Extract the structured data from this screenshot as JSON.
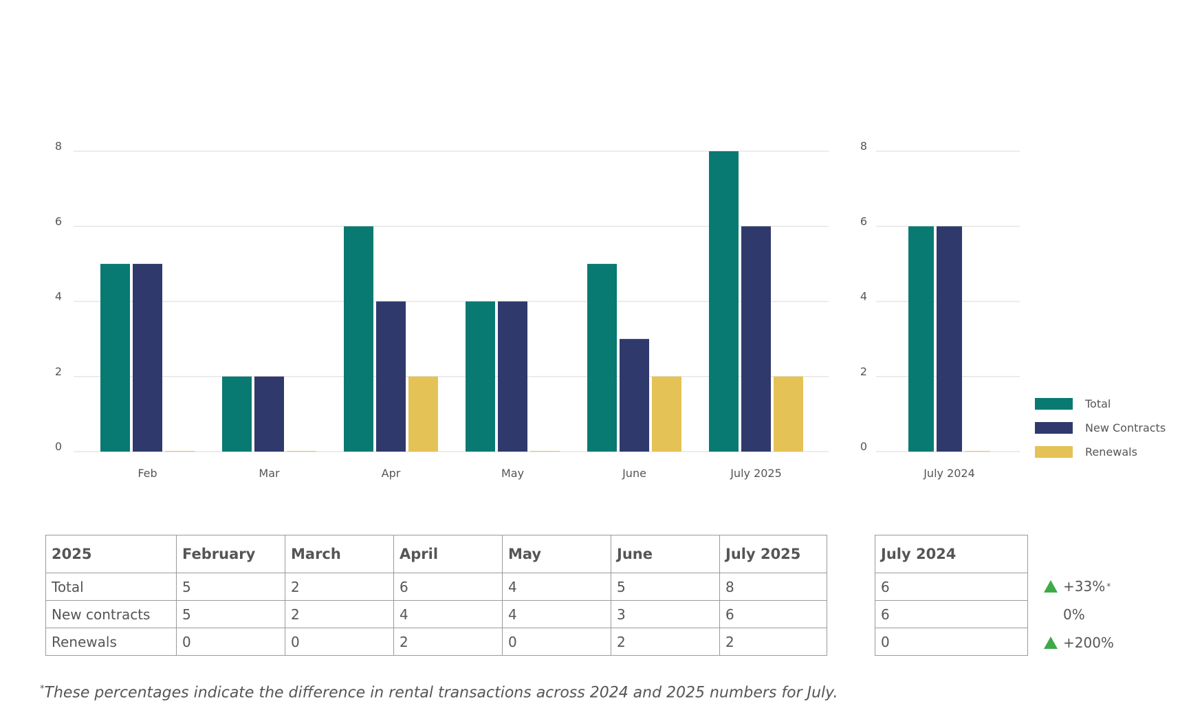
{
  "colors": {
    "total": "#087a72",
    "new_contracts": "#2f396b",
    "renewals": "#e5c255",
    "grid": "#e6e6e6",
    "up_arrow": "#3daa48"
  },
  "chart_data": [
    {
      "type": "bar",
      "categories": [
        "Feb",
        "Mar",
        "Apr",
        "May",
        "June",
        "July 2025"
      ],
      "series": [
        {
          "name": "Total",
          "values": [
            5,
            2,
            6,
            4,
            5,
            8
          ]
        },
        {
          "name": "New Contracts",
          "values": [
            5,
            2,
            4,
            4,
            3,
            6
          ]
        },
        {
          "name": "Renewals",
          "values": [
            0,
            0,
            2,
            0,
            2,
            2
          ]
        }
      ],
      "yticks": [
        "0",
        "2",
        "4",
        "6",
        "8"
      ],
      "ylim": [
        0,
        8
      ],
      "grid": true
    },
    {
      "type": "bar",
      "categories": [
        "July 2024"
      ],
      "series": [
        {
          "name": "Total",
          "values": [
            6
          ]
        },
        {
          "name": "New Contracts",
          "values": [
            6
          ]
        },
        {
          "name": "Renewals",
          "values": [
            0
          ]
        }
      ],
      "yticks": [
        "0",
        "2",
        "4",
        "6",
        "8"
      ],
      "ylim": [
        0,
        8
      ],
      "grid": true,
      "legend": "right"
    }
  ],
  "legend": [
    {
      "label": "Total",
      "color": "#087a72"
    },
    {
      "label": "New Contracts",
      "color": "#2f396b"
    },
    {
      "label": "Renewals",
      "color": "#e5c255"
    }
  ],
  "table_2025": {
    "headers": [
      "2025",
      "February",
      "March",
      "April",
      "May",
      "June",
      "July 2025"
    ],
    "rows": [
      [
        "Total",
        "5",
        "2",
        "6",
        "4",
        "5",
        "8"
      ],
      [
        "New contracts",
        "5",
        "2",
        "4",
        "4",
        "3",
        "6"
      ],
      [
        "Renewals",
        "0",
        "0",
        "2",
        "0",
        "2",
        "2"
      ]
    ]
  },
  "table_2024": {
    "header": "July 2024",
    "values": [
      "6",
      "6",
      "0"
    ]
  },
  "differences": [
    {
      "text": "+33%",
      "arrow": "up",
      "star": "*"
    },
    {
      "text": "0%",
      "arrow": "none",
      "star": ""
    },
    {
      "text": "+200%",
      "arrow": "up",
      "star": ""
    }
  ],
  "footnote": {
    "star": "*",
    "text": "These percentages indicate the difference in rental transactions across 2024 and 2025 numbers for July."
  }
}
